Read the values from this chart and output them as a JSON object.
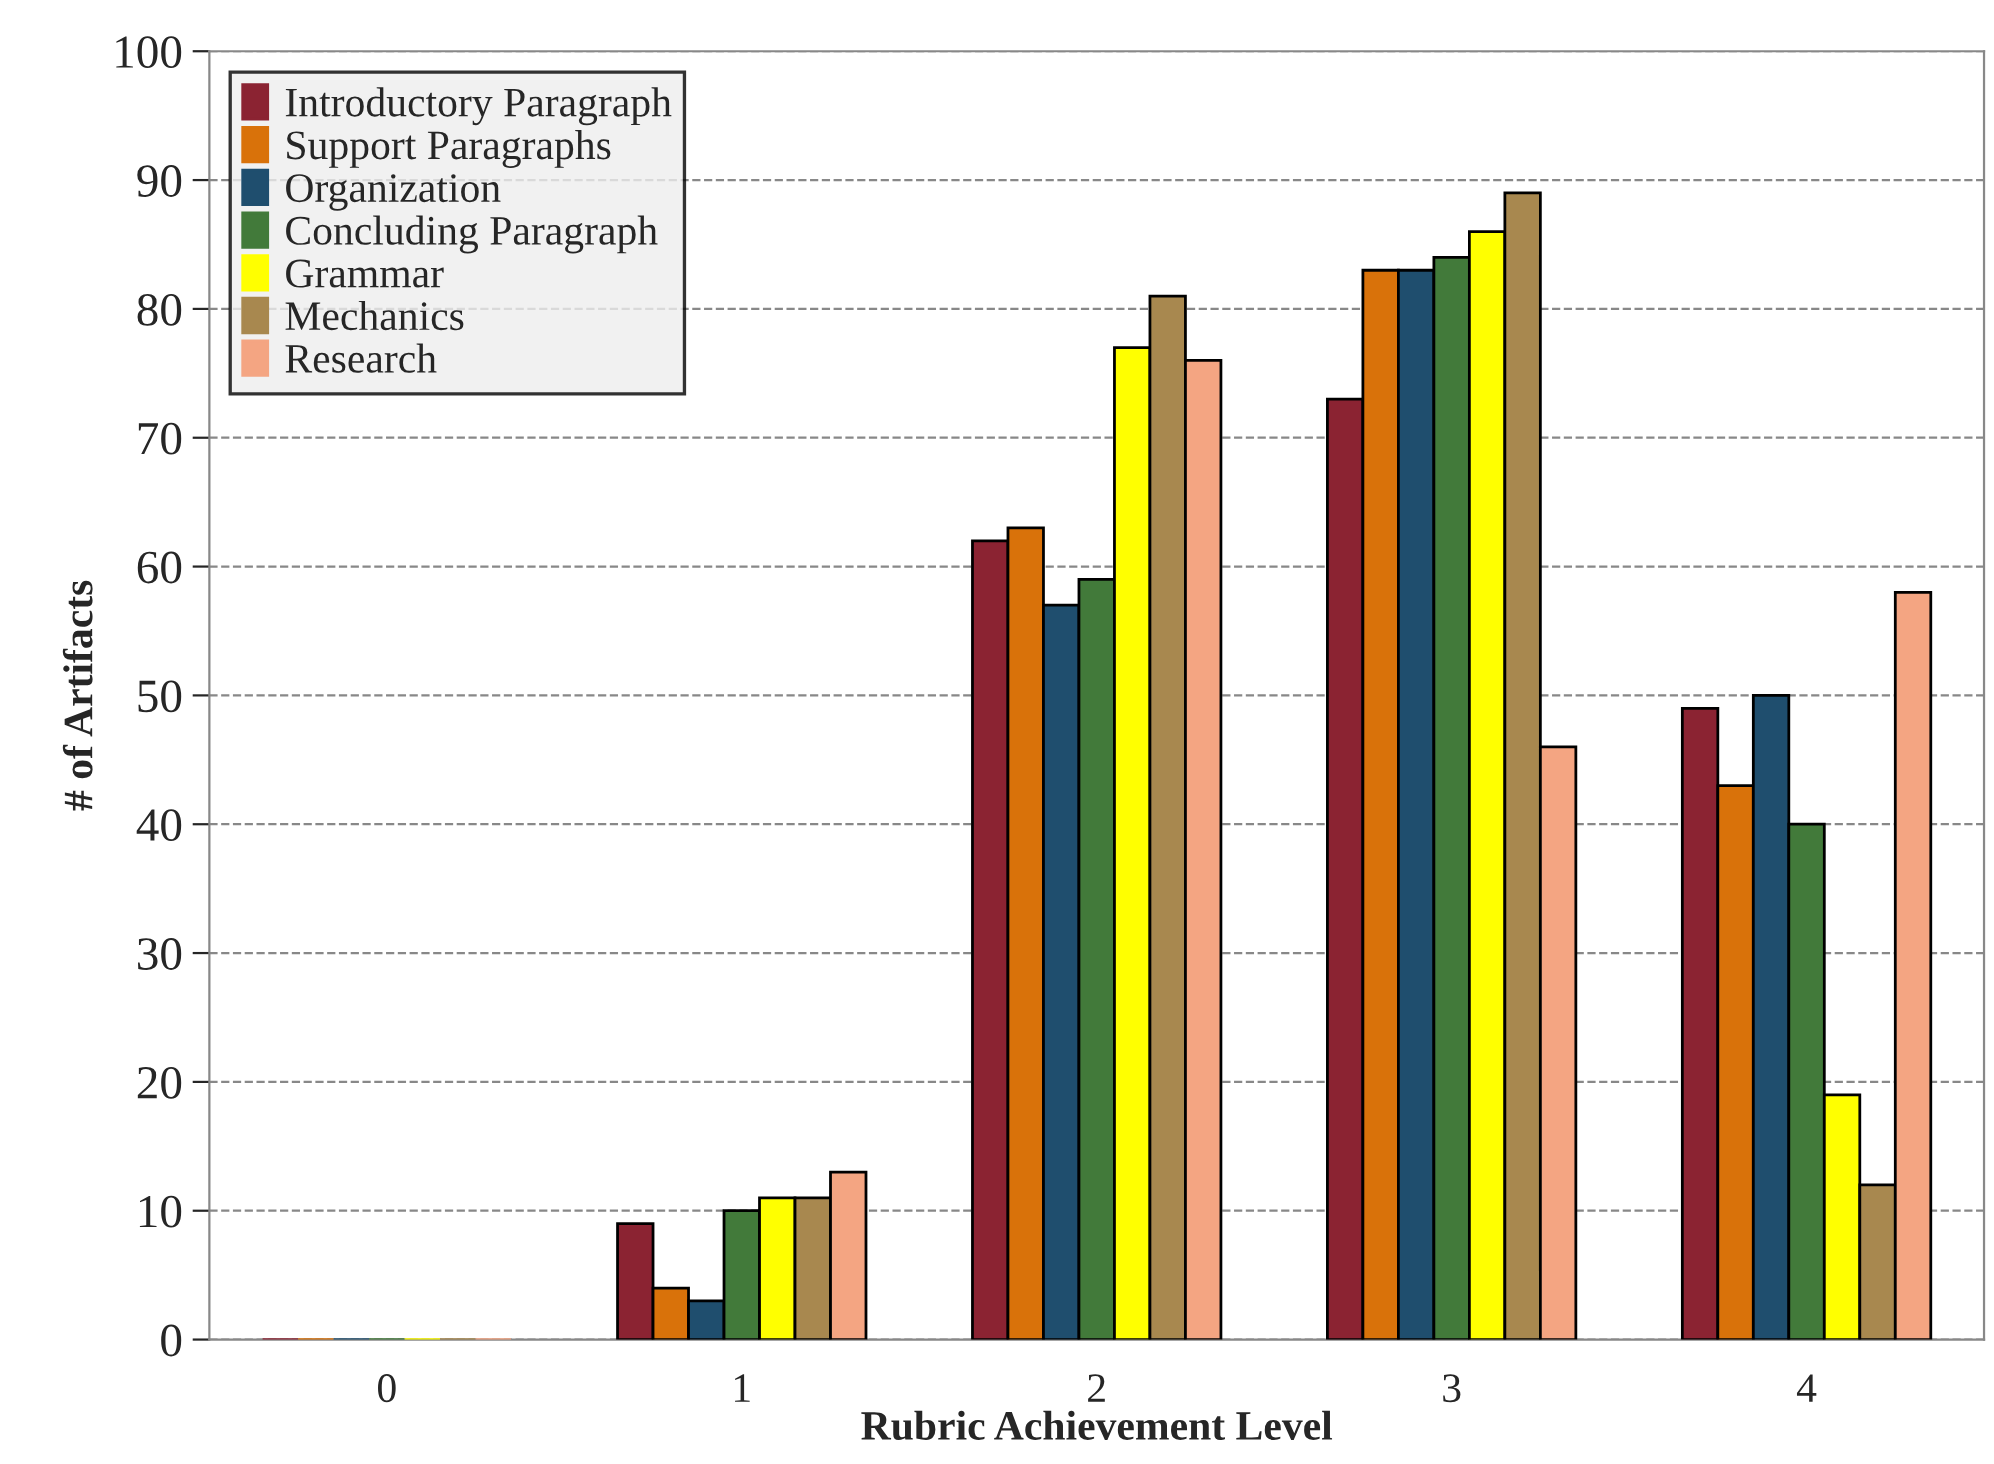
{
  "chart_data": {
    "type": "bar",
    "xlabel": "Rubric Achievement Level",
    "ylabel": "# of Artifacts",
    "categories": [
      "0",
      "1",
      "2",
      "3",
      "4"
    ],
    "series": [
      {
        "name": "Introductory Paragraph",
        "color": "#8b2332",
        "values": [
          0,
          9,
          62,
          73,
          49
        ]
      },
      {
        "name": "Support Paragraphs",
        "color": "#d9720a",
        "values": [
          0,
          4,
          63,
          83,
          43
        ]
      },
      {
        "name": "Organization",
        "color": "#1f4e6e",
        "values": [
          0,
          3,
          57,
          83,
          50
        ]
      },
      {
        "name": "Concluding Paragraph",
        "color": "#427a3a",
        "values": [
          0,
          10,
          59,
          84,
          40
        ]
      },
      {
        "name": "Grammar",
        "color": "#ffff00",
        "values": [
          0,
          11,
          77,
          86,
          19
        ]
      },
      {
        "name": "Mechanics",
        "color": "#a8884f",
        "values": [
          0,
          11,
          81,
          89,
          12
        ]
      },
      {
        "name": "Research",
        "color": "#f4a582",
        "values": [
          0,
          13,
          76,
          46,
          58
        ]
      }
    ],
    "ylim": [
      0,
      100
    ],
    "yticks": [
      0,
      10,
      20,
      30,
      40,
      50,
      60,
      70,
      80,
      90,
      100
    ],
    "grid": "y",
    "legend": "top left"
  }
}
